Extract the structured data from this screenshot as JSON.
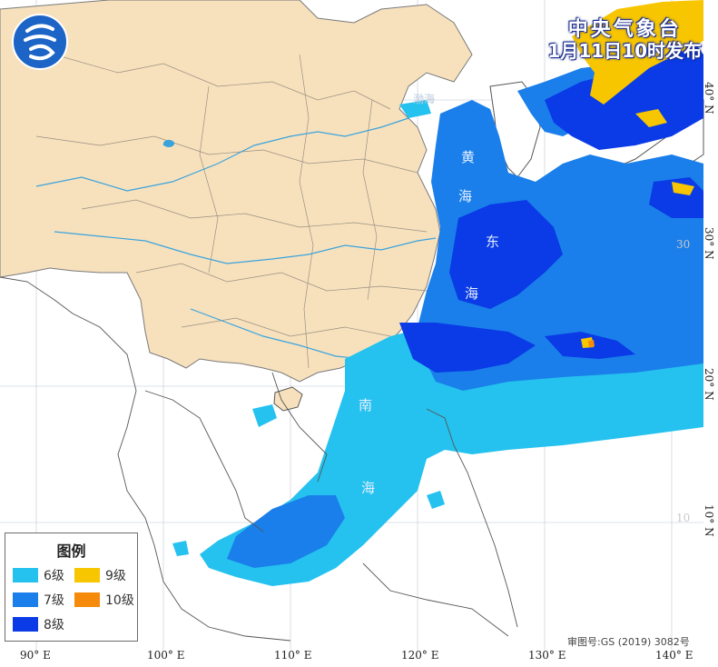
{
  "issuer": {
    "org": "中央气象台",
    "issue_time": "1月11日10时发布"
  },
  "legend": {
    "title": "图例",
    "items": [
      {
        "label": "6级",
        "color": "#25c2ef"
      },
      {
        "label": "9级",
        "color": "#f7c600"
      },
      {
        "label": "7级",
        "color": "#1a7fea"
      },
      {
        "label": "10级",
        "color": "#f58a0b"
      },
      {
        "label": "8级",
        "color": "#0a3be6"
      }
    ]
  },
  "axes": {
    "lon_ticks": [
      "90° E",
      "100° E",
      "110° E",
      "120° E",
      "130° E",
      "140° E"
    ],
    "lat_ticks": [
      "10° N",
      "20° N",
      "30° N",
      "40° N"
    ],
    "grid_labels": [
      "30",
      "10"
    ]
  },
  "sea_labels": {
    "bohai": "渤海",
    "huanghai": [
      "黄",
      "海"
    ],
    "donghai": [
      "东",
      "海"
    ],
    "nanhai": [
      "南",
      "海"
    ]
  },
  "approval": "审图号:GS (2019) 3082号",
  "colors": {
    "land_china": "#f7e1bd",
    "land_other": "#ffffff",
    "coast": "#555555",
    "river": "#3aa3dc"
  }
}
